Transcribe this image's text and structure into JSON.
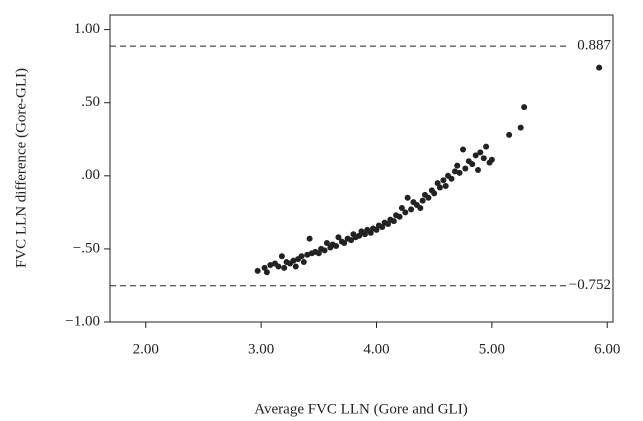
{
  "chart_data": {
    "type": "scatter",
    "x_label": "Average FVC LLN (Gore and GLI)",
    "y_label": "FVC LLN difference (Gore-GLI)",
    "xlim": [
      1.69,
      6.05
    ],
    "ylim": [
      -1.0,
      1.1
    ],
    "xticks": [
      {
        "value": 2,
        "label": "2.00"
      },
      {
        "value": 3,
        "label": "3.00"
      },
      {
        "value": 4,
        "label": "4.00"
      },
      {
        "value": 5,
        "label": "5.00"
      },
      {
        "value": 6,
        "label": "6.00"
      }
    ],
    "yticks": [
      {
        "value": 1,
        "label": "1.00"
      },
      {
        "value": 0.5,
        "label": ".50"
      },
      {
        "value": 0,
        "label": ".00"
      },
      {
        "value": -0.5,
        "label": "−.50"
      },
      {
        "value": -1,
        "label": "−1.00"
      }
    ],
    "reference_lines": [
      {
        "value": 0.887,
        "label": "0.887"
      },
      {
        "value": -0.752,
        "label": "−0.752"
      }
    ],
    "color": "#222222",
    "x": [
      2.97,
      3.03,
      3.05,
      3.08,
      3.12,
      3.15,
      3.18,
      3.2,
      3.22,
      3.25,
      3.28,
      3.3,
      3.32,
      3.35,
      3.37,
      3.4,
      3.42,
      3.44,
      3.47,
      3.5,
      3.52,
      3.55,
      3.57,
      3.6,
      3.62,
      3.65,
      3.67,
      3.7,
      3.72,
      3.75,
      3.78,
      3.8,
      3.82,
      3.85,
      3.87,
      3.9,
      3.92,
      3.95,
      3.97,
      4.0,
      4.02,
      4.05,
      4.07,
      4.1,
      4.12,
      4.15,
      4.17,
      4.2,
      4.22,
      4.25,
      4.27,
      4.3,
      4.32,
      4.35,
      4.38,
      4.4,
      4.42,
      4.45,
      4.48,
      4.5,
      4.53,
      4.55,
      4.58,
      4.6,
      4.62,
      4.65,
      4.68,
      4.7,
      4.72,
      4.75,
      4.77,
      4.8,
      4.83,
      4.86,
      4.88,
      4.9,
      4.93,
      4.95,
      4.98,
      5.0,
      5.15,
      5.25,
      5.28,
      5.93
    ],
    "y": [
      -0.65,
      -0.63,
      -0.66,
      -0.61,
      -0.6,
      -0.62,
      -0.55,
      -0.63,
      -0.59,
      -0.6,
      -0.58,
      -0.62,
      -0.57,
      -0.55,
      -0.59,
      -0.54,
      -0.43,
      -0.53,
      -0.52,
      -0.53,
      -0.5,
      -0.51,
      -0.46,
      -0.49,
      -0.47,
      -0.48,
      -0.42,
      -0.45,
      -0.46,
      -0.43,
      -0.44,
      -0.4,
      -0.42,
      -0.41,
      -0.38,
      -0.4,
      -0.37,
      -0.39,
      -0.36,
      -0.37,
      -0.34,
      -0.35,
      -0.32,
      -0.33,
      -0.3,
      -0.31,
      -0.27,
      -0.28,
      -0.22,
      -0.25,
      -0.15,
      -0.23,
      -0.18,
      -0.2,
      -0.22,
      -0.17,
      -0.13,
      -0.15,
      -0.1,
      -0.12,
      -0.05,
      -0.08,
      -0.03,
      -0.07,
      0.0,
      -0.02,
      0.03,
      0.07,
      0.02,
      0.18,
      0.05,
      0.1,
      0.08,
      0.14,
      0.04,
      0.16,
      0.12,
      0.2,
      0.09,
      0.11,
      0.28,
      0.33,
      0.47,
      0.74
    ]
  }
}
